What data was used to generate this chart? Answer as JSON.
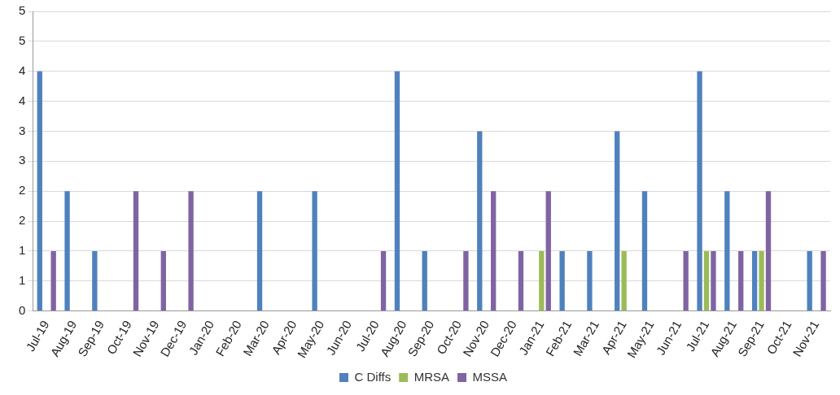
{
  "chart_data": {
    "type": "bar",
    "categories": [
      "Jul-19",
      "Aug-19",
      "Sep-19",
      "Oct-19",
      "Nov-19",
      "Dec-19",
      "Jan-20",
      "Feb-20",
      "Mar-20",
      "Apr-20",
      "May-20",
      "Jun-20",
      "Jul-20",
      "Aug-20",
      "Sep-20",
      "Oct-20",
      "Nov-20",
      "Dec-20",
      "Jan-21",
      "Feb-21",
      "Mar-21",
      "Apr-21",
      "May-21",
      "Jun-21",
      "Jul-21",
      "Aug-21",
      "Sep-21",
      "Oct-21",
      "Nov-21"
    ],
    "series": [
      {
        "name": "C Diffs",
        "color": "#4f81bd",
        "values": [
          4,
          2,
          1,
          0,
          0,
          0,
          0,
          0,
          2,
          0,
          2,
          0,
          0,
          4,
          1,
          0,
          3,
          0,
          0,
          1,
          1,
          3,
          2,
          0,
          4,
          2,
          1,
          0,
          1
        ]
      },
      {
        "name": "MRSA",
        "color": "#9bbb59",
        "values": [
          0,
          0,
          0,
          0,
          0,
          0,
          0,
          0,
          0,
          0,
          0,
          0,
          0,
          0,
          0,
          0,
          0,
          0,
          1,
          0,
          0,
          1,
          0,
          0,
          1,
          0,
          1,
          0,
          0
        ]
      },
      {
        "name": "MSSA",
        "color": "#8064a2",
        "values": [
          1,
          0,
          0,
          2,
          1,
          2,
          0,
          0,
          0,
          0,
          0,
          0,
          1,
          0,
          0,
          1,
          2,
          1,
          2,
          0,
          0,
          0,
          0,
          1,
          1,
          1,
          2,
          0,
          1
        ]
      }
    ],
    "ylim": [
      0,
      5
    ],
    "yticks": [
      0,
      {
        "value": 0.5,
        "label": "1"
      },
      1,
      {
        "value": 1.5,
        "label": "2"
      },
      2,
      {
        "value": 2.5,
        "label": "3"
      },
      3,
      {
        "value": 3.5,
        "label": "4"
      },
      4,
      {
        "value": 4.5,
        "label": "5"
      },
      5
    ],
    "grid": "y",
    "legend": "bottom"
  }
}
